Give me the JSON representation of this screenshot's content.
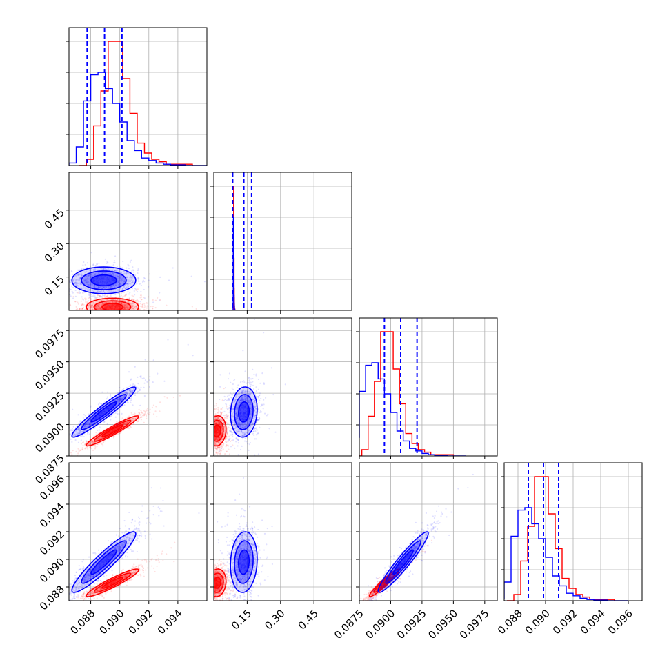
{
  "colors": {
    "red": "#ff0000",
    "blue": "#0000ff",
    "grid": "#b0b0b0",
    "axis": "#000000"
  },
  "chart_data": {
    "type": "corner",
    "grid": true,
    "params": [
      {
        "range": [
          0.0865,
          0.096
        ],
        "ticks": [
          "0.088",
          "0.090",
          "0.092",
          "0.094"
        ]
      },
      {
        "range": [
          0.0,
          0.62
        ],
        "ticks": [
          "0.15",
          "0.30",
          "0.45"
        ]
      },
      {
        "range": [
          0.0875,
          0.0985
        ],
        "ticks": [
          "0.0875",
          "0.0900",
          "0.0925",
          "0.0950",
          "0.0975"
        ]
      },
      {
        "range": [
          0.087,
          0.097
        ],
        "ticks": [
          "0.088",
          "0.090",
          "0.092",
          "0.094",
          "0.096"
        ]
      }
    ],
    "series": [
      {
        "color": "red",
        "means": [
          0.0895,
          0.015,
          0.0895,
          0.0883
        ],
        "sds": [
          0.0009,
          0.02,
          0.0006,
          0.0005
        ],
        "hist": [
          [
            0.0872,
            0.0877,
            0.0882,
            0.0887,
            0.0892,
            0.0897,
            0.0902,
            0.0907,
            0.0912,
            0.0917,
            0.0922,
            0.0927,
            0.0932,
            0.0937,
            0.095
          ],
          [
            0,
            5,
            32,
            60,
            100,
            100,
            70,
            42,
            18,
            10,
            5,
            3,
            1,
            1
          ]
        ]
      },
      {
        "color": "blue",
        "means": [
          0.0889,
          0.135,
          0.091,
          0.0898
        ],
        "sds": [
          0.0011,
          0.03,
          0.001,
          0.0011
        ],
        "hist": [
          [
            0.0865,
            0.087,
            0.0875,
            0.088,
            0.0885,
            0.089,
            0.0895,
            0.09,
            0.0905,
            0.091,
            0.0915,
            0.092,
            0.0925,
            0.093,
            0.0935,
            0.0945,
            0.096
          ],
          [
            2,
            15,
            52,
            73,
            75,
            62,
            50,
            35,
            20,
            12,
            6,
            4,
            2,
            1,
            0.5,
            0
          ]
        ]
      }
    ],
    "blue_quantile_lines": [
      [
        0.08775,
        0.08895,
        0.09015
      ],
      [
        0.085,
        0.135,
        0.17
      ],
      [
        0.0895,
        0.0908,
        0.0921
      ],
      [
        0.08875,
        0.08985,
        0.09095
      ]
    ]
  }
}
